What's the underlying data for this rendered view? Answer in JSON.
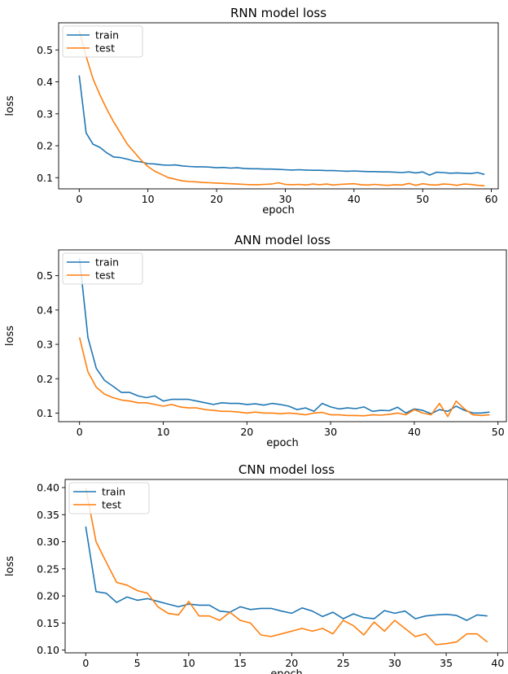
{
  "colors": {
    "train": "#1f77b4",
    "test": "#ff7f0e"
  },
  "chart_data": [
    {
      "type": "line",
      "title": "RNN model loss",
      "xlabel": "epoch",
      "ylabel": "loss",
      "xlim": [
        -3,
        61
      ],
      "ylim": [
        0.065,
        0.585
      ],
      "xticks": [
        0,
        10,
        20,
        30,
        40,
        50,
        60
      ],
      "yticks": [
        0.1,
        0.2,
        0.3,
        0.4,
        0.5
      ],
      "xtick_labels": [
        "0",
        "10",
        "20",
        "30",
        "40",
        "50",
        "60"
      ],
      "ytick_labels": [
        "0.1",
        "0.2",
        "0.3",
        "0.4",
        "0.5"
      ],
      "legend": "top-left",
      "grid": false,
      "series": [
        {
          "name": "train",
          "x": [
            0,
            1,
            2,
            3,
            4,
            5,
            6,
            7,
            8,
            9,
            10,
            11,
            12,
            13,
            14,
            15,
            16,
            17,
            18,
            19,
            20,
            21,
            22,
            23,
            24,
            25,
            26,
            27,
            28,
            29,
            30,
            31,
            32,
            33,
            34,
            35,
            36,
            37,
            38,
            39,
            40,
            41,
            42,
            43,
            44,
            45,
            46,
            47,
            48,
            49,
            50,
            51,
            52,
            53,
            54,
            55,
            56,
            57,
            58,
            59
          ],
          "values": [
            0.42,
            0.24,
            0.205,
            0.195,
            0.178,
            0.165,
            0.163,
            0.158,
            0.152,
            0.149,
            0.144,
            0.143,
            0.14,
            0.139,
            0.14,
            0.137,
            0.135,
            0.134,
            0.134,
            0.133,
            0.131,
            0.132,
            0.13,
            0.131,
            0.129,
            0.128,
            0.128,
            0.127,
            0.127,
            0.126,
            0.125,
            0.124,
            0.125,
            0.124,
            0.123,
            0.123,
            0.122,
            0.122,
            0.121,
            0.12,
            0.121,
            0.12,
            0.119,
            0.119,
            0.118,
            0.118,
            0.117,
            0.116,
            0.118,
            0.115,
            0.118,
            0.108,
            0.117,
            0.116,
            0.114,
            0.115,
            0.114,
            0.113,
            0.116,
            0.11
          ]
        },
        {
          "name": "test",
          "x": [
            0,
            1,
            2,
            3,
            4,
            5,
            6,
            7,
            8,
            9,
            10,
            11,
            12,
            13,
            14,
            15,
            16,
            17,
            18,
            19,
            20,
            21,
            22,
            23,
            24,
            25,
            26,
            27,
            28,
            29,
            30,
            31,
            32,
            33,
            34,
            35,
            36,
            37,
            38,
            39,
            40,
            41,
            42,
            43,
            44,
            45,
            46,
            47,
            48,
            49,
            50,
            51,
            52,
            53,
            54,
            55,
            56,
            57,
            58,
            59
          ],
          "values": [
            0.56,
            0.48,
            0.41,
            0.36,
            0.315,
            0.275,
            0.24,
            0.205,
            0.18,
            0.155,
            0.135,
            0.12,
            0.11,
            0.1,
            0.095,
            0.09,
            0.088,
            0.087,
            0.085,
            0.084,
            0.083,
            0.082,
            0.081,
            0.08,
            0.079,
            0.078,
            0.078,
            0.079,
            0.08,
            0.084,
            0.079,
            0.078,
            0.079,
            0.077,
            0.08,
            0.078,
            0.08,
            0.077,
            0.079,
            0.08,
            0.081,
            0.078,
            0.077,
            0.079,
            0.077,
            0.076,
            0.078,
            0.077,
            0.082,
            0.076,
            0.081,
            0.078,
            0.077,
            0.08,
            0.079,
            0.076,
            0.08,
            0.079,
            0.076,
            0.075
          ]
        }
      ]
    },
    {
      "type": "line",
      "title": "ANN model loss",
      "xlabel": "epoch",
      "ylabel": "loss",
      "xlim": [
        -2.5,
        51
      ],
      "ylim": [
        0.075,
        0.575
      ],
      "xticks": [
        0,
        10,
        20,
        30,
        40,
        50
      ],
      "yticks": [
        0.1,
        0.2,
        0.3,
        0.4,
        0.5
      ],
      "xtick_labels": [
        "0",
        "10",
        "20",
        "30",
        "40",
        "50"
      ],
      "ytick_labels": [
        "0.1",
        "0.2",
        "0.3",
        "0.4",
        "0.5"
      ],
      "legend": "top-left",
      "grid": false,
      "series": [
        {
          "name": "train",
          "x": [
            0,
            1,
            2,
            3,
            4,
            5,
            6,
            7,
            8,
            9,
            10,
            11,
            12,
            13,
            14,
            15,
            16,
            17,
            18,
            19,
            20,
            21,
            22,
            23,
            24,
            25,
            26,
            27,
            28,
            29,
            30,
            31,
            32,
            33,
            34,
            35,
            36,
            37,
            38,
            39,
            40,
            41,
            42,
            43,
            44,
            45,
            46,
            47,
            48,
            49
          ],
          "values": [
            0.55,
            0.32,
            0.23,
            0.195,
            0.178,
            0.16,
            0.16,
            0.15,
            0.145,
            0.15,
            0.135,
            0.14,
            0.14,
            0.14,
            0.135,
            0.13,
            0.125,
            0.13,
            0.128,
            0.128,
            0.125,
            0.127,
            0.123,
            0.128,
            0.125,
            0.12,
            0.11,
            0.115,
            0.105,
            0.128,
            0.118,
            0.112,
            0.115,
            0.113,
            0.118,
            0.105,
            0.108,
            0.107,
            0.117,
            0.1,
            0.112,
            0.108,
            0.098,
            0.11,
            0.105,
            0.12,
            0.108,
            0.1,
            0.1,
            0.103
          ]
        },
        {
          "name": "test",
          "x": [
            0,
            1,
            2,
            3,
            4,
            5,
            6,
            7,
            8,
            9,
            10,
            11,
            12,
            13,
            14,
            15,
            16,
            17,
            18,
            19,
            20,
            21,
            22,
            23,
            24,
            25,
            26,
            27,
            28,
            29,
            30,
            31,
            32,
            33,
            34,
            35,
            36,
            37,
            38,
            39,
            40,
            41,
            42,
            43,
            44,
            45,
            46,
            47,
            48,
            49
          ],
          "values": [
            0.32,
            0.22,
            0.175,
            0.155,
            0.145,
            0.138,
            0.135,
            0.13,
            0.13,
            0.125,
            0.12,
            0.125,
            0.118,
            0.115,
            0.115,
            0.11,
            0.108,
            0.105,
            0.105,
            0.103,
            0.1,
            0.103,
            0.1,
            0.1,
            0.098,
            0.1,
            0.098,
            0.095,
            0.1,
            0.102,
            0.095,
            0.095,
            0.093,
            0.093,
            0.092,
            0.095,
            0.094,
            0.096,
            0.1,
            0.095,
            0.11,
            0.1,
            0.095,
            0.128,
            0.09,
            0.135,
            0.112,
            0.095,
            0.093,
            0.095
          ]
        }
      ]
    },
    {
      "type": "line",
      "title": "CNN model loss",
      "xlabel": "epoch",
      "ylabel": "loss",
      "xlim": [
        -2,
        41
      ],
      "ylim": [
        0.095,
        0.415
      ],
      "xticks": [
        0,
        5,
        10,
        15,
        20,
        25,
        30,
        35,
        40
      ],
      "yticks": [
        0.1,
        0.15,
        0.2,
        0.25,
        0.3,
        0.35,
        0.4
      ],
      "xtick_labels": [
        "0",
        "5",
        "10",
        "15",
        "20",
        "25",
        "30",
        "35",
        "40"
      ],
      "ytick_labels": [
        "0.10",
        "0.15",
        "0.20",
        "0.25",
        "0.30",
        "0.35",
        "0.40"
      ],
      "legend": "top-left",
      "grid": false,
      "series": [
        {
          "name": "train",
          "x": [
            0,
            1,
            2,
            3,
            4,
            5,
            6,
            7,
            8,
            9,
            10,
            11,
            12,
            13,
            14,
            15,
            16,
            17,
            18,
            19,
            20,
            21,
            22,
            23,
            24,
            25,
            26,
            27,
            28,
            29,
            30,
            31,
            32,
            33,
            34,
            35,
            36,
            37,
            38,
            39
          ],
          "values": [
            0.328,
            0.208,
            0.205,
            0.188,
            0.198,
            0.192,
            0.195,
            0.19,
            0.185,
            0.18,
            0.185,
            0.183,
            0.183,
            0.172,
            0.17,
            0.18,
            0.175,
            0.177,
            0.177,
            0.172,
            0.168,
            0.178,
            0.172,
            0.162,
            0.17,
            0.158,
            0.167,
            0.16,
            0.158,
            0.173,
            0.168,
            0.172,
            0.158,
            0.163,
            0.165,
            0.166,
            0.164,
            0.155,
            0.165,
            0.163
          ]
        },
        {
          "name": "test",
          "x": [
            0,
            1,
            2,
            3,
            4,
            5,
            6,
            7,
            8,
            9,
            10,
            11,
            12,
            13,
            14,
            15,
            16,
            17,
            18,
            19,
            20,
            21,
            22,
            23,
            24,
            25,
            26,
            27,
            28,
            29,
            30,
            31,
            32,
            33,
            34,
            35,
            36,
            37,
            38,
            39
          ],
          "values": [
            0.4,
            0.3,
            0.262,
            0.225,
            0.22,
            0.21,
            0.205,
            0.18,
            0.168,
            0.165,
            0.19,
            0.163,
            0.163,
            0.155,
            0.17,
            0.155,
            0.15,
            0.128,
            0.125,
            0.13,
            0.135,
            0.14,
            0.135,
            0.14,
            0.13,
            0.155,
            0.145,
            0.128,
            0.152,
            0.135,
            0.155,
            0.14,
            0.125,
            0.13,
            0.11,
            0.112,
            0.115,
            0.13,
            0.13,
            0.115
          ]
        }
      ]
    }
  ]
}
